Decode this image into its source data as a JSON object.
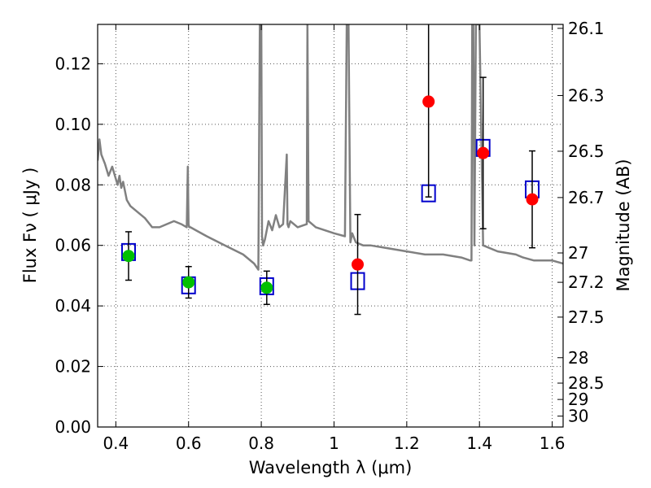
{
  "chart_data": {
    "type": "scatter",
    "title": "",
    "xlabel": "Wavelength  λ (μm)",
    "ylabel": "Flux  Fν  ( μJy )",
    "ylabel_right": "Magnitude (AB)",
    "xlim": [
      0.35,
      1.63
    ],
    "ylim": [
      0.0,
      0.133
    ],
    "grid": true,
    "x_ticks": [
      0.4,
      0.6,
      0.8,
      1.0,
      1.2,
      1.4,
      1.6
    ],
    "x_tick_labels": [
      "0.4",
      "0.6",
      "0.8",
      "1",
      "1.2",
      "1.4",
      "1.6"
    ],
    "y_ticks": [
      0.0,
      0.02,
      0.04,
      0.06,
      0.08,
      0.1,
      0.12
    ],
    "y_tick_labels": [
      "0.00",
      "0.02",
      "0.04",
      "0.06",
      "0.08",
      "0.10",
      "0.12"
    ],
    "right_ticks": [
      {
        "label": "26.1",
        "flux": 0.1317
      },
      {
        "label": "26.3",
        "flux": 0.1095
      },
      {
        "label": "26.5",
        "flux": 0.0911
      },
      {
        "label": "26.7",
        "flux": 0.0758
      },
      {
        "label": "27",
        "flux": 0.0575
      },
      {
        "label": "27.2",
        "flux": 0.0478
      },
      {
        "label": "27.5",
        "flux": 0.0363
      },
      {
        "label": "28",
        "flux": 0.0229
      },
      {
        "label": "28.5",
        "flux": 0.0145
      },
      {
        "label": "29",
        "flux": 0.0091
      },
      {
        "label": "30",
        "flux": 0.0036
      }
    ],
    "series": [
      {
        "kind": "line",
        "color": "#808080",
        "x": [
          0.35,
          0.355,
          0.36,
          0.37,
          0.38,
          0.39,
          0.4,
          0.405,
          0.41,
          0.415,
          0.42,
          0.43,
          0.44,
          0.46,
          0.48,
          0.5,
          0.52,
          0.54,
          0.56,
          0.58,
          0.595,
          0.598,
          0.6,
          0.602,
          0.605,
          0.62,
          0.65,
          0.7,
          0.75,
          0.78,
          0.792,
          0.796,
          0.8,
          0.802,
          0.805,
          0.81,
          0.82,
          0.83,
          0.84,
          0.85,
          0.86,
          0.87,
          0.872,
          0.875,
          0.88,
          0.9,
          0.925,
          0.927,
          0.93,
          0.95,
          1.0,
          1.03,
          1.035,
          1.04,
          1.045,
          1.05,
          1.06,
          1.08,
          1.1,
          1.15,
          1.2,
          1.25,
          1.3,
          1.35,
          1.375,
          1.378,
          1.38,
          1.383,
          1.386,
          1.39,
          1.4,
          1.41,
          1.45,
          1.5,
          1.52,
          1.55,
          1.58,
          1.6,
          1.63
        ],
        "y": [
          0.088,
          0.095,
          0.09,
          0.087,
          0.083,
          0.086,
          0.082,
          0.08,
          0.083,
          0.079,
          0.081,
          0.075,
          0.073,
          0.071,
          0.069,
          0.066,
          0.066,
          0.067,
          0.068,
          0.067,
          0.066,
          0.086,
          0.067,
          0.066,
          0.066,
          0.065,
          0.063,
          0.06,
          0.057,
          0.054,
          0.052,
          0.133,
          0.133,
          0.063,
          0.06,
          0.062,
          0.068,
          0.065,
          0.07,
          0.066,
          0.067,
          0.09,
          0.067,
          0.066,
          0.068,
          0.066,
          0.067,
          0.133,
          0.068,
          0.066,
          0.064,
          0.063,
          0.133,
          0.133,
          0.061,
          0.064,
          0.061,
          0.06,
          0.06,
          0.059,
          0.058,
          0.057,
          0.057,
          0.056,
          0.055,
          0.055,
          0.133,
          0.133,
          0.06,
          0.133,
          0.133,
          0.06,
          0.058,
          0.057,
          0.056,
          0.055,
          0.055,
          0.055,
          0.054
        ]
      },
      {
        "kind": "box",
        "color": "#0000cc",
        "x": [
          0.435,
          0.6,
          0.815,
          1.065,
          1.26,
          1.41,
          1.545
        ],
        "y": [
          0.0578,
          0.0468,
          0.0465,
          0.0482,
          0.0772,
          0.0922,
          0.0785
        ]
      },
      {
        "kind": "point",
        "color": "#00c000",
        "x": [
          0.435,
          0.6,
          0.815
        ],
        "y": [
          0.0565,
          0.0478,
          0.046
        ],
        "err": [
          0.008,
          0.0052,
          0.0055
        ]
      },
      {
        "kind": "point",
        "color": "#ff0000",
        "x": [
          1.065,
          1.26,
          1.41,
          1.545
        ],
        "y": [
          0.0537,
          0.1075,
          0.0905,
          0.0752
        ],
        "err": [
          0.0165,
          0.0315,
          0.025,
          0.016
        ]
      }
    ]
  }
}
